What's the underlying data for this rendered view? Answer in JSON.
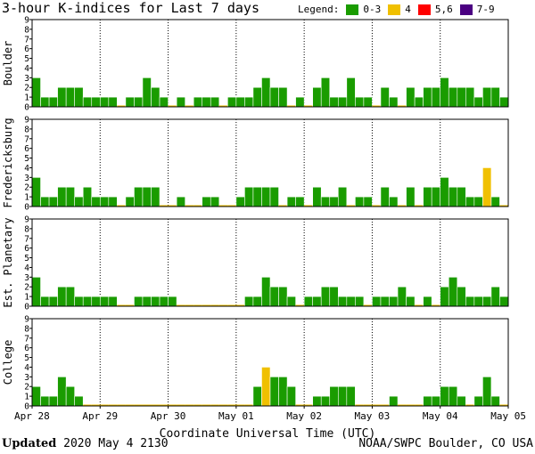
{
  "title": "3-hour K-indices for Last 7 days",
  "legend": {
    "label": "Legend:",
    "items": [
      {
        "label": "0-3",
        "color": "#1a9c00"
      },
      {
        "label": "4",
        "color": "#f0c000"
      },
      {
        "label": "5,6",
        "color": "#ff0000"
      },
      {
        "label": "7-9",
        "color": "#4b0082"
      }
    ]
  },
  "footer": {
    "updated_label": "Updated",
    "updated_value": "2020 May  4 2130",
    "source": "NOAA/SWPC Boulder, CO USA"
  },
  "chart_data": {
    "type": "bar",
    "xlabel": "Coordinate Universal Time (UTC)",
    "x_ticks": [
      "Apr 28",
      "Apr 29",
      "Apr 30",
      "May 01",
      "May 02",
      "May 03",
      "May 04",
      "May 05"
    ],
    "y_ticks": [
      "0",
      "1",
      "2",
      "3",
      "4",
      "5",
      "6",
      "7",
      "8",
      "9"
    ],
    "ylim": [
      0,
      9
    ],
    "bins_per_day": 8,
    "grid": "dotted vertical at day boundaries",
    "color_scale": {
      "0-3": "#1a9c00",
      "4": "#f0c000",
      "5,6": "#ff0000",
      "7-9": "#4b0082"
    },
    "panels": [
      {
        "name": "Boulder",
        "values": [
          3,
          1,
          1,
          2,
          2,
          2,
          1,
          1,
          1,
          1,
          0,
          1,
          1,
          3,
          2,
          1,
          0,
          1,
          0,
          1,
          1,
          1,
          0,
          1,
          1,
          1,
          2,
          3,
          2,
          2,
          0,
          1,
          0,
          2,
          3,
          1,
          1,
          3,
          1,
          1,
          0,
          2,
          1,
          0,
          2,
          1,
          2,
          2,
          3,
          2,
          2,
          2,
          1,
          2,
          2,
          1,
          0
        ]
      },
      {
        "name": "Fredericksburg",
        "values": [
          3,
          1,
          1,
          2,
          2,
          1,
          2,
          1,
          1,
          1,
          0,
          1,
          2,
          2,
          2,
          0,
          0,
          1,
          0,
          0,
          1,
          1,
          0,
          0,
          1,
          2,
          2,
          2,
          2,
          0,
          1,
          1,
          0,
          2,
          1,
          1,
          2,
          0,
          1,
          1,
          0,
          2,
          1,
          0,
          2,
          0,
          2,
          2,
          3,
          2,
          2,
          1,
          1,
          4,
          1,
          0,
          0
        ]
      },
      {
        "name": "Est. Planetary",
        "values": [
          3,
          1,
          1,
          2,
          2,
          1,
          1,
          1,
          1,
          1,
          0,
          0,
          1,
          1,
          1,
          1,
          1,
          0,
          0,
          0,
          0,
          0,
          0,
          0,
          0,
          1,
          1,
          3,
          2,
          2,
          1,
          0,
          1,
          1,
          2,
          2,
          1,
          1,
          1,
          0,
          1,
          1,
          1,
          2,
          1,
          0,
          1,
          0,
          2,
          3,
          2,
          1,
          1,
          1,
          2,
          1,
          0
        ]
      },
      {
        "name": "College",
        "values": [
          2,
          1,
          1,
          3,
          2,
          1,
          0,
          0,
          0,
          0,
          0,
          0,
          0,
          0,
          0,
          0,
          0,
          0,
          0,
          0,
          0,
          0,
          0,
          0,
          0,
          0,
          2,
          4,
          3,
          3,
          2,
          0,
          0,
          1,
          1,
          2,
          2,
          2,
          0,
          0,
          0,
          0,
          1,
          0,
          0,
          0,
          1,
          1,
          2,
          2,
          1,
          0,
          1,
          3,
          1,
          0,
          0
        ]
      }
    ]
  }
}
